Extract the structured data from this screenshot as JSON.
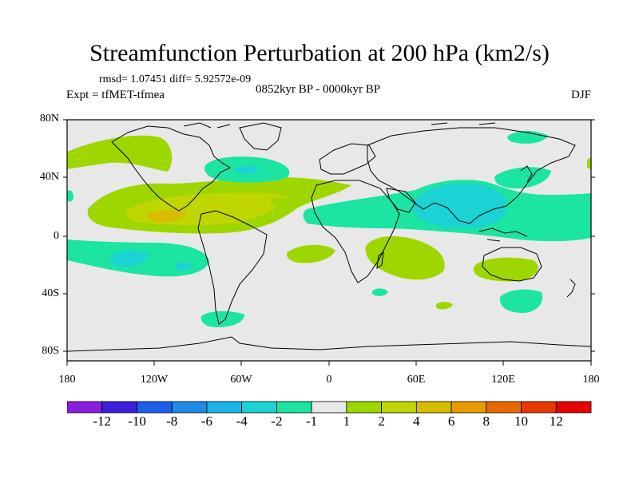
{
  "title": "Streamfunction Perturbation at 200 hPa (km2/s)",
  "stats": "rmsd= 1.07451 diff= 5.92572e-09",
  "experiment": "Expt = tfMET-tfmea",
  "period": "0852kyr BP - 0000kyr BP",
  "season": "DJF",
  "lat_labels": [
    "80N",
    "40N",
    "0",
    "40S",
    "80S"
  ],
  "lon_labels": [
    "180",
    "120W",
    "60W",
    "0",
    "60E",
    "120E",
    "180"
  ],
  "colorbar": {
    "labels": [
      "-12",
      "-10",
      "-8",
      "-6",
      "-4",
      "-2",
      "-1",
      "1",
      "2",
      "4",
      "6",
      "8",
      "10",
      "12"
    ],
    "colors": [
      "#8a1de0",
      "#3c1fd8",
      "#1d5ee8",
      "#1f8ce8",
      "#19b2e8",
      "#1ad3d2",
      "#1ce4a3",
      "#e8e8e8",
      "#9ed600",
      "#bfd600",
      "#d8bc00",
      "#e89a00",
      "#e86a00",
      "#e83a00",
      "#e80000"
    ]
  },
  "map_colors": {
    "background": "#e8e8e8",
    "neg1": "#1ce4a3",
    "neg2": "#1ad3d2",
    "neg4": "#19b2e8",
    "pos1": "#9ed600",
    "pos2": "#bfd600",
    "pos4": "#d8bc00"
  }
}
